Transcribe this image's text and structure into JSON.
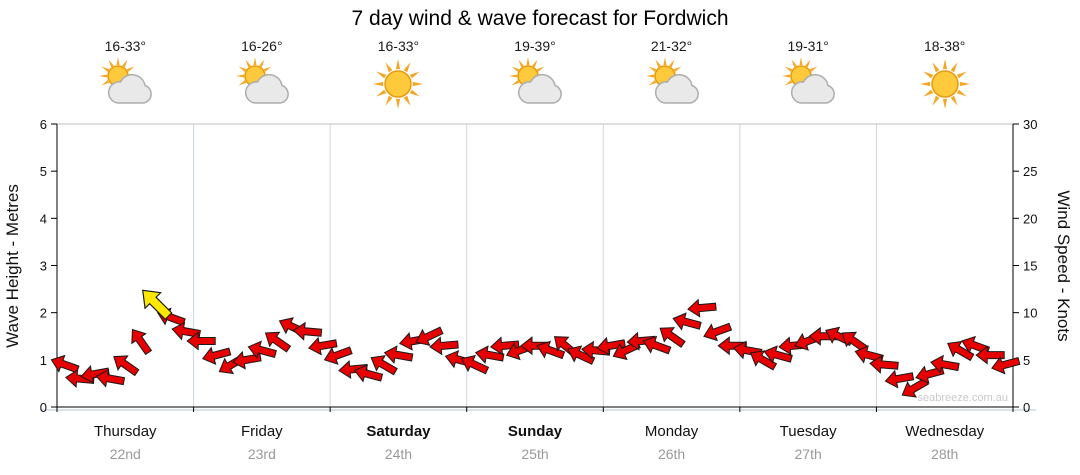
{
  "title": "7 day wind & wave forecast for Fordwich",
  "watermark": "seabreeze.com.au",
  "days": [
    {
      "name": "Thursday",
      "date": "22nd",
      "temp": "16-33°",
      "icon": "partly-cloudy",
      "weekend": false
    },
    {
      "name": "Friday",
      "date": "23rd",
      "temp": "16-26°",
      "icon": "partly-cloudy",
      "weekend": false
    },
    {
      "name": "Saturday",
      "date": "24th",
      "temp": "16-33°",
      "icon": "sunny",
      "weekend": true
    },
    {
      "name": "Sunday",
      "date": "25th",
      "temp": "19-39°",
      "icon": "partly-cloudy",
      "weekend": true
    },
    {
      "name": "Monday",
      "date": "26th",
      "temp": "21-32°",
      "icon": "partly-cloudy",
      "weekend": false
    },
    {
      "name": "Tuesday",
      "date": "27th",
      "temp": "19-31°",
      "icon": "partly-cloudy",
      "weekend": false
    },
    {
      "name": "Wednesday",
      "date": "28th",
      "temp": "18-38°",
      "icon": "sunny",
      "weekend": false
    }
  ],
  "chart_data": {
    "type": "wind-arrow-series",
    "title": "7 day wind & wave forecast for Fordwich",
    "y_left": {
      "label": "Wave Height - Metres",
      "min": 0,
      "max": 6,
      "ticks": [
        0,
        1,
        2,
        3,
        4,
        5,
        6
      ]
    },
    "y_right": {
      "label": "Wind Speed - Knots",
      "min": 0,
      "max": 30,
      "ticks": [
        0,
        5,
        10,
        15,
        20,
        25,
        30
      ]
    },
    "categories": [
      "Thursday 22nd",
      "Friday 23rd",
      "Saturday 24th",
      "Sunday 25th",
      "Monday 26th",
      "Tuesday 27th",
      "Wednesday 28th"
    ],
    "points_per_day": 9,
    "wind_knots": [
      4.5,
      3,
      3.5,
      3,
      4.5,
      7,
      11,
      9.5,
      8,
      7,
      5.5,
      4.5,
      5,
      6,
      7,
      8.5,
      8,
      6.5,
      5.5,
      4,
      3.5,
      4.5,
      5.5,
      7,
      7.5,
      6.5,
      5,
      4.5,
      5.5,
      6.5,
      6,
      6.5,
      6,
      6.5,
      5.5,
      6,
      6.5,
      6,
      7,
      6.5,
      7.5,
      9,
      10.5,
      8,
      6.5,
      6,
      5,
      5.5,
      6.5,
      7,
      7.5,
      7.5,
      7,
      5.5,
      4.5,
      3,
      2,
      3.5,
      4.5,
      6,
      6.5,
      5.5,
      4.5
    ],
    "wind_dir_deg": [
      200,
      185,
      170,
      190,
      215,
      235,
      225,
      200,
      190,
      180,
      165,
      150,
      170,
      195,
      215,
      205,
      185,
      170,
      160,
      175,
      195,
      210,
      190,
      170,
      155,
      175,
      195,
      205,
      190,
      175,
      160,
      180,
      200,
      220,
      205,
      185,
      170,
      155,
      175,
      200,
      215,
      195,
      175,
      160,
      180,
      190,
      210,
      195,
      175,
      160,
      180,
      205,
      215,
      195,
      185,
      170,
      150,
      165,
      190,
      210,
      200,
      180,
      165
    ],
    "highlight_index": 6,
    "arrow_color": "#E60000",
    "highlight_color": "#FFE800"
  }
}
